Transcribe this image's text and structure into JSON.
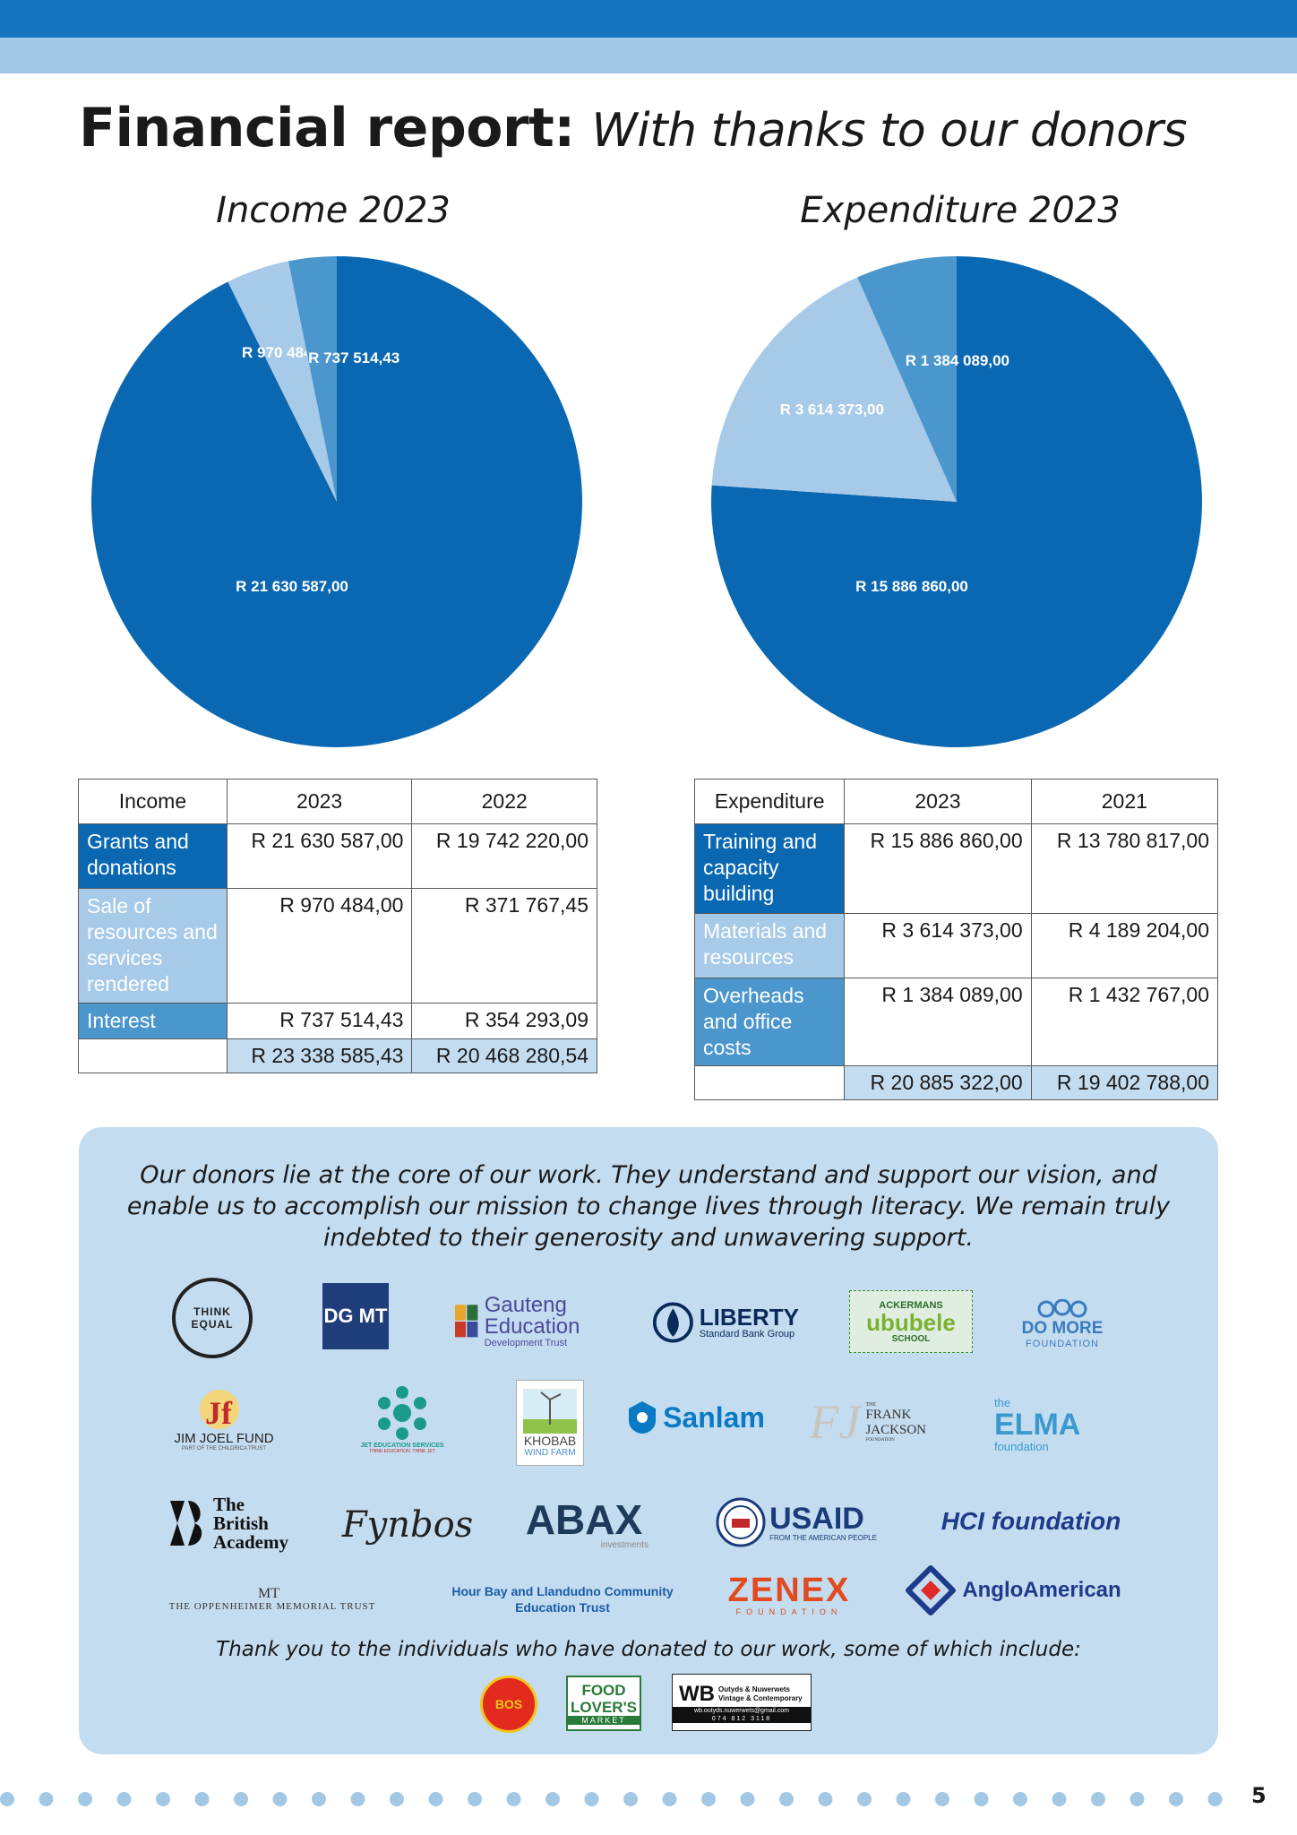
{
  "header": {
    "title_bold": "Financial report:",
    "title_italic": "With thanks to our donors",
    "colors": {
      "dark_band": "#1775bf",
      "light_band": "#a2c8e6"
    }
  },
  "chart_data": [
    {
      "type": "pie",
      "title": "Income 2023",
      "labels": [
        "R 21 630 587,00",
        "R 970 484,00",
        "R 737 514,43"
      ],
      "values": [
        21630587.0,
        970484.0,
        737514.43
      ],
      "colors": [
        "#0a68b2",
        "#a7cae8",
        "#4b96cc"
      ]
    },
    {
      "type": "pie",
      "title": "Expenditure 2023",
      "labels": [
        "R 15 886 860,00",
        "R 3 614 373,00",
        "R 1 384 089,00"
      ],
      "values": [
        15886860.0,
        3614373.0,
        1384089.0
      ],
      "colors": [
        "#0a68b2",
        "#a7cae8",
        "#4b96cc"
      ]
    }
  ],
  "income_table": {
    "headers": [
      "Income",
      "2023",
      "2022"
    ],
    "rows": [
      {
        "label": "Grants and donations",
        "y2023": "R 21 630 587,00",
        "y2022": "R 19 742 220,00"
      },
      {
        "label": "Sale of resources and services rendered",
        "y2023": "R 970 484,00",
        "y2022": "R 371 767,45"
      },
      {
        "label": "Interest",
        "y2023": "R 737 514,43",
        "y2022": "R 354 293,09"
      }
    ],
    "totals": {
      "y2023": "R 23 338 585,43",
      "y2022": "R 20 468 280,54"
    }
  },
  "expenditure_table": {
    "headers": [
      "Expenditure",
      "2023",
      "2021"
    ],
    "rows": [
      {
        "label": "Training and capacity building",
        "y2023": "R 15 886 860,00",
        "y2021": "R 13 780 817,00"
      },
      {
        "label": "Materials and resources",
        "y2023": "R 3 614 373,00",
        "y2021": "R 4 189 204,00"
      },
      {
        "label": "Overheads and office costs",
        "y2023": "R 1 384 089,00",
        "y2021": "R 1 432 767,00"
      }
    ],
    "totals": {
      "y2023": "R 20 885 322,00",
      "y2021": "R 19 402 788,00"
    }
  },
  "donors": {
    "intro": "Our donors lie at the core of our work. They understand and support our vision, and enable us to accomplish our mission to change lives through literacy. We remain truly indebted to their generosity and unwavering support.",
    "thanks": "Thank you to the individuals who have donated to our work, some of which include:",
    "logos": {
      "think_equal": "THINK EQUAL",
      "dgmt": "DG MT",
      "gauteng": "Gauteng Education",
      "gauteng_sub": "Development Trust",
      "liberty": "LIBERTY",
      "liberty_sub": "Standard Bank Group",
      "ackermans_top": "ACKERMANS",
      "ackermans_main": "ububele",
      "ackermans_sub": "SCHOOL",
      "domore": "DO MORE",
      "domore_sub": "FOUNDATION",
      "jjf": "JIM JOEL FUND",
      "jjf_sub": "PART OF THE CHILDRICA TRUST",
      "jet": "JET EDUCATION SERVICES",
      "jet_sub": "THINK EDUCATION. THINK JET",
      "khobab": "KHOBAB",
      "khobab_sub": "WIND FARM",
      "sanlam": "Sanlam",
      "frank": "FRANK JACKSON",
      "frank_top": "THE",
      "frank_sub": "FOUNDATION",
      "elma_top": "the",
      "elma": "ELMA",
      "elma_sub": "foundation",
      "british": "The British Academy",
      "fynbos": "Fynbos",
      "abax": "ABAX",
      "abax_sub": "investments",
      "usaid": "USAID",
      "usaid_sub": "FROM THE AMERICAN PEOPLE",
      "hci": "HCI foundation",
      "oppenheimer": "THE OPPENHEIMER MEMORIAL TRUST",
      "hourbay": "Hour Bay and Llandudno Community Education Trust",
      "zenex": "ZENEX",
      "zenex_sub": "FOUNDATION",
      "anglo": "AngloAmerican",
      "bos": "BOS",
      "food": "FOOD LOVER'S",
      "food_sub": "MARKET",
      "wb": "WB",
      "wb_title": "Outyds & Nuwerwets Vintage & Contemporary",
      "wb_email": "wb.outyds.nuwerwets@gmail.com",
      "wb_phone": "074 812 3118"
    }
  },
  "page_number": "5"
}
